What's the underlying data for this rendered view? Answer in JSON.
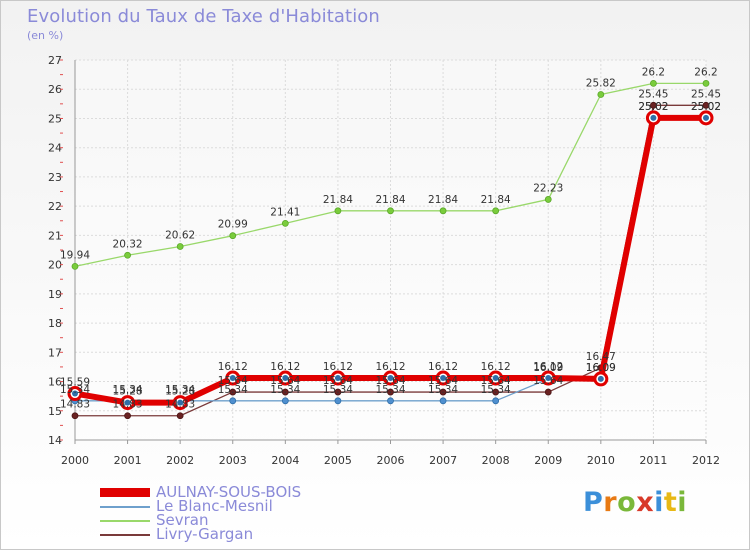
{
  "header": {
    "title": "Evolution du Taux de Taxe d'Habitation",
    "unit_label": "(en %)"
  },
  "brand": {
    "letters": [
      "P",
      "r",
      "o",
      "x",
      "i",
      "t",
      "i"
    ],
    "colors": [
      "#3b8fd9",
      "#e87a14",
      "#7ab83a",
      "#d83a2a",
      "#3b8fd9",
      "#e8b814",
      "#7ab83a"
    ]
  },
  "chart_data": {
    "type": "line",
    "x": [
      "2000",
      "2001",
      "2002",
      "2003",
      "2004",
      "2005",
      "2006",
      "2007",
      "2008",
      "2009",
      "2010",
      "2011",
      "2012"
    ],
    "ylim": [
      14,
      27
    ],
    "yticks": [
      14,
      15,
      16,
      17,
      18,
      19,
      20,
      21,
      22,
      23,
      24,
      25,
      26,
      27
    ],
    "grid": true,
    "legend_position": "bottom-left",
    "series": [
      {
        "name": "AULNAY-SOUS-BOIS",
        "color": "#e00000",
        "values": [
          15.59,
          15.28,
          15.28,
          16.12,
          16.12,
          16.12,
          16.12,
          16.12,
          16.12,
          16.12,
          16.09,
          25.02,
          25.02
        ],
        "labels": [
          "15.59",
          "15.28",
          "15.28",
          "16.12",
          "16.12",
          "16.12",
          "16.12",
          "16.12",
          "16.12",
          "16.12",
          "16.09",
          "25.02",
          "25.02"
        ]
      },
      {
        "name": "Le Blanc-Mesnil",
        "color": "#6ea0cc",
        "values": [
          15.34,
          15.34,
          15.34,
          15.34,
          15.34,
          15.34,
          15.34,
          15.34,
          15.34,
          16.09,
          16.09,
          25.02,
          25.02
        ],
        "labels": [
          "15.34",
          "15.34",
          "15.34",
          "15.34",
          "15.34",
          "15.34",
          "15.34",
          "15.34",
          "15.34",
          "16.09",
          "16.09",
          "25.02",
          "25.02"
        ]
      },
      {
        "name": "Sevran",
        "color": "#99d86a",
        "values": [
          19.94,
          20.32,
          20.62,
          20.99,
          21.41,
          21.84,
          21.84,
          21.84,
          21.84,
          22.23,
          25.82,
          26.2,
          26.2
        ],
        "labels": [
          "19.94",
          "20.32",
          "20.62",
          "20.99",
          "21.41",
          "21.84",
          "21.84",
          "21.84",
          "21.84",
          "22.23",
          "25.82",
          "26.2",
          "26.2"
        ]
      },
      {
        "name": "Livry-Gargan",
        "color": "#7a3a3a",
        "values": [
          14.83,
          14.83,
          14.83,
          15.64,
          15.64,
          15.64,
          15.64,
          15.64,
          15.64,
          15.64,
          16.47,
          25.45,
          25.45
        ],
        "labels": [
          "14.83",
          "14.83",
          "14.83",
          "15.64",
          "15.64",
          "15.64",
          "15.64",
          "15.64",
          "15.64",
          "15.64",
          "16.47",
          "25.45",
          "25.45"
        ]
      }
    ]
  }
}
